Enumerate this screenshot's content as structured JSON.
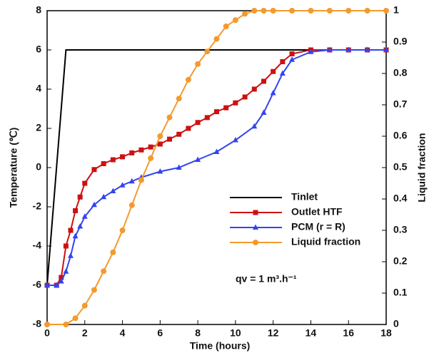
{
  "chart_data": {
    "type": "line",
    "xlabel": "Time (hours)",
    "ylabel": "Temperature (℃)",
    "y2label": "Liquid fraction",
    "annotation": "qv = 1 m³.h⁻¹",
    "xlim": [
      0,
      18
    ],
    "xticks": [
      0,
      2,
      4,
      6,
      8,
      10,
      12,
      14,
      16,
      18
    ],
    "ylim": [
      -8,
      8
    ],
    "yticks": [
      -8,
      -6,
      -4,
      -2,
      0,
      2,
      4,
      6,
      8
    ],
    "y2lim": [
      0,
      1
    ],
    "y2ticks": [
      0,
      0.1,
      0.2,
      0.3,
      0.4,
      0.5,
      0.6,
      0.7,
      0.8,
      0.9,
      1
    ],
    "series": [
      {
        "name": "Tinlet",
        "color": "#000000",
        "marker": "none",
        "x": [
          0,
          1,
          18
        ],
        "values": [
          -6,
          6,
          6
        ]
      },
      {
        "name": "Outlet HTF",
        "color": "#cc1111",
        "marker": "square",
        "x": [
          0,
          0.5,
          0.75,
          1,
          1.25,
          1.5,
          1.75,
          2,
          2.5,
          3,
          3.5,
          4,
          4.5,
          5,
          5.5,
          6,
          6.5,
          7,
          7.5,
          8,
          8.5,
          9,
          9.5,
          10,
          10.5,
          11,
          11.5,
          12,
          12.5,
          13,
          14,
          15,
          16,
          17,
          18
        ],
        "values": [
          -6,
          -6,
          -5.6,
          -4,
          -3.2,
          -2.2,
          -1.5,
          -0.8,
          -0.1,
          0.2,
          0.4,
          0.55,
          0.75,
          0.9,
          1.05,
          1.2,
          1.45,
          1.7,
          2,
          2.3,
          2.55,
          2.85,
          3.05,
          3.3,
          3.6,
          4,
          4.4,
          4.9,
          5.4,
          5.8,
          6,
          6,
          6,
          6,
          6
        ]
      },
      {
        "name": "PCM (r = R)",
        "color": "#3344ee",
        "marker": "triangle",
        "x": [
          0,
          0.5,
          0.75,
          1,
          1.25,
          1.5,
          1.75,
          2,
          2.5,
          3,
          3.5,
          4,
          4.5,
          5,
          6,
          7,
          8,
          9,
          10,
          11,
          11.5,
          12,
          12.5,
          13,
          14,
          15,
          16,
          17,
          18
        ],
        "values": [
          -6,
          -6,
          -5.8,
          -5.3,
          -4.5,
          -3.5,
          -3,
          -2.5,
          -1.9,
          -1.5,
          -1.2,
          -0.9,
          -0.7,
          -0.5,
          -0.2,
          0,
          0.4,
          0.8,
          1.4,
          2.1,
          2.8,
          3.8,
          4.8,
          5.5,
          5.9,
          6,
          6,
          6,
          6
        ]
      },
      {
        "name": "Liquid fraction",
        "color": "#f39a2e",
        "marker": "circle",
        "axis": "y2",
        "x": [
          0,
          1,
          1.5,
          2,
          2.5,
          3,
          3.5,
          4,
          4.5,
          5,
          5.5,
          6,
          6.5,
          7,
          7.5,
          8,
          8.5,
          9,
          9.5,
          10,
          10.5,
          11,
          11.5,
          12,
          13,
          14,
          15,
          16,
          17,
          18
        ],
        "values": [
          0,
          0,
          0.02,
          0.06,
          0.11,
          0.17,
          0.23,
          0.3,
          0.38,
          0.46,
          0.53,
          0.6,
          0.66,
          0.72,
          0.78,
          0.83,
          0.87,
          0.91,
          0.95,
          0.97,
          0.99,
          1,
          1,
          1,
          1,
          1,
          1,
          1,
          1,
          1
        ]
      }
    ]
  }
}
